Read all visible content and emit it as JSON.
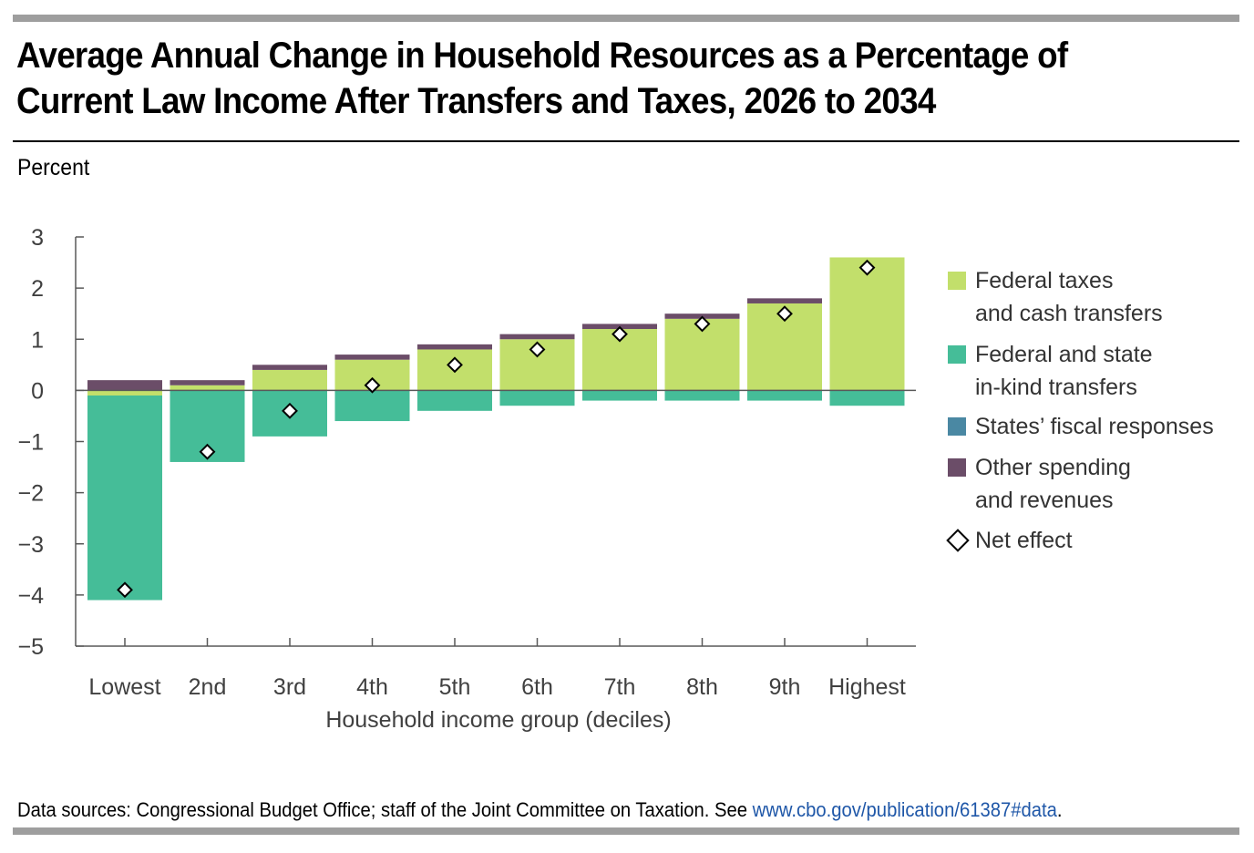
{
  "title": "Average Annual Change in Household Resources as a Percentage of Current Law Income After Transfers and Taxes, 2026 to 2034",
  "unit_label": "Percent",
  "source": {
    "text": "Data sources: Congressional Budget Office; staff of the Joint Committee on Taxation. See ",
    "link": "www.cbo.gov/publication/61387#data",
    "after": "."
  },
  "colors": {
    "federal_taxes": "#c2df6b",
    "in_kind": "#45bd98",
    "states": "#4a88a3",
    "other": "#6b4d68",
    "axis": "#595959",
    "tick_text": "#404040"
  },
  "chart_data": {
    "type": "bar",
    "stacked": true,
    "title": "Average Annual Change in Household Resources as a Percentage of Current Law Income After Transfers and Taxes, 2026 to 2034",
    "xlabel": "Household income group (deciles)",
    "ylabel": "Percent",
    "ylim": [
      -5,
      3
    ],
    "yticks": [
      3,
      2,
      1,
      0,
      -1,
      -2,
      -3,
      -4,
      -5
    ],
    "ytick_labels": [
      "3",
      "2",
      "1",
      "0",
      "−1",
      "−2",
      "−3",
      "−4",
      "−5"
    ],
    "grid": false,
    "legend_position": "right",
    "categories": [
      "Lowest",
      "2nd",
      "3rd",
      "4th",
      "5th",
      "6th",
      "7th",
      "8th",
      "9th",
      "Highest"
    ],
    "series": [
      {
        "name": "Federal taxes\nand cash transfers",
        "color_key": "federal_taxes",
        "values": [
          -0.1,
          0.1,
          0.4,
          0.6,
          0.8,
          1.0,
          1.2,
          1.4,
          1.7,
          2.6
        ]
      },
      {
        "name": "Federal and state\nin-kind transfers",
        "color_key": "in_kind",
        "values": [
          -4.0,
          -1.4,
          -0.9,
          -0.6,
          -0.4,
          -0.3,
          -0.2,
          -0.2,
          -0.2,
          -0.3
        ]
      },
      {
        "name": "States’ fiscal responses",
        "color_key": "states",
        "values": [
          0,
          0,
          0,
          0,
          0,
          0,
          0,
          0,
          0,
          0
        ]
      },
      {
        "name": "Other spending\nand revenues",
        "color_key": "other",
        "values": [
          0.2,
          0.1,
          0.1,
          0.1,
          0.1,
          0.1,
          0.1,
          0.1,
          0.1,
          0.0
        ]
      }
    ],
    "net_effect": {
      "name": "Net effect",
      "values": [
        -3.9,
        -1.2,
        -0.4,
        0.1,
        0.5,
        0.8,
        1.1,
        1.3,
        1.5,
        2.4
      ]
    }
  }
}
